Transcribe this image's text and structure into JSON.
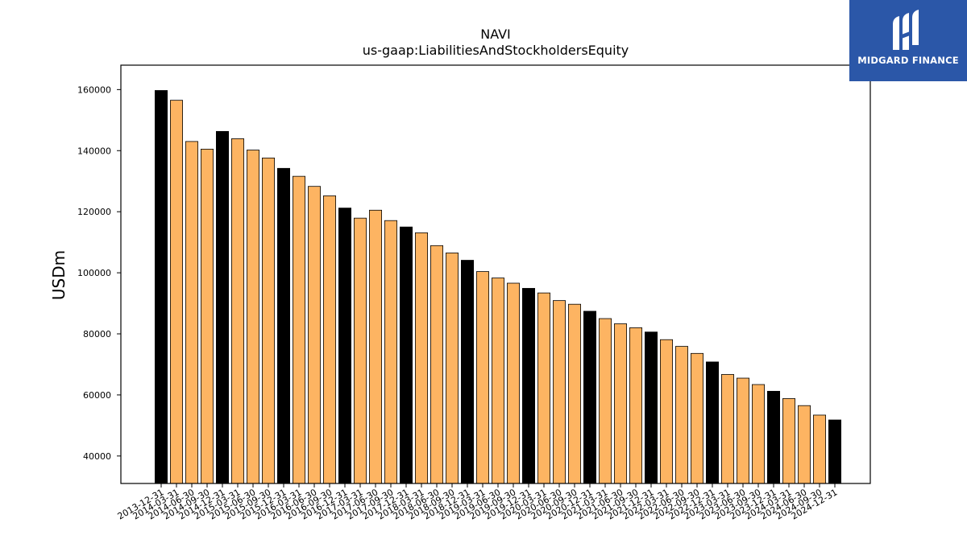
{
  "brand": {
    "name": "MIDGARD FINANCE",
    "icon": "midgard-logo-icon",
    "background_color": "#2b57a8"
  },
  "chart_data": {
    "type": "bar",
    "title": "NAVI",
    "subtitle": "us-gaap:LiabilitiesAndStockholdersEquity",
    "xlabel": "",
    "ylabel": "USDm",
    "ylim": [
      31000,
      168000
    ],
    "yticks": [
      40000,
      60000,
      80000,
      100000,
      120000,
      140000,
      160000
    ],
    "grid": false,
    "legend": "none",
    "colors": {
      "annual": "#000000",
      "quarterly": "#fdb462",
      "edge": "#000000"
    },
    "categories": [
      "2013-12-31",
      "2014-03-31",
      "2014-06-30",
      "2014-09-30",
      "2014-12-31",
      "2015-03-31",
      "2015-06-30",
      "2015-09-30",
      "2015-12-31",
      "2016-03-31",
      "2016-06-30",
      "2016-09-30",
      "2016-12-31",
      "2017-03-31",
      "2017-06-30",
      "2017-09-30",
      "2017-12-31",
      "2018-03-31",
      "2018-06-30",
      "2018-09-30",
      "2018-12-31",
      "2019-03-31",
      "2019-06-30",
      "2019-09-30",
      "2019-12-31",
      "2020-03-31",
      "2020-06-30",
      "2020-09-30",
      "2020-12-31",
      "2021-03-31",
      "2021-06-30",
      "2021-09-30",
      "2021-12-31",
      "2022-03-31",
      "2022-06-30",
      "2022-09-30",
      "2022-12-31",
      "2023-03-31",
      "2023-06-30",
      "2023-09-30",
      "2023-12-31",
      "2024-03-31",
      "2024-06-30",
      "2024-09-30",
      "2024-12-31"
    ],
    "values": [
      159700,
      156500,
      143000,
      140500,
      146300,
      143900,
      140200,
      137600,
      134200,
      131600,
      128300,
      125200,
      121200,
      117900,
      120500,
      117100,
      115000,
      113100,
      108900,
      106500,
      104100,
      100400,
      98300,
      96600,
      94900,
      93400,
      90900,
      89700,
      87400,
      85000,
      83300,
      82000,
      80600,
      78100,
      75900,
      73600,
      70800,
      66700,
      65500,
      63400,
      61200,
      58800,
      56500,
      53400,
      51800
    ],
    "annual": [
      true,
      false,
      false,
      false,
      true,
      false,
      false,
      false,
      true,
      false,
      false,
      false,
      true,
      false,
      false,
      false,
      true,
      false,
      false,
      false,
      true,
      false,
      false,
      false,
      true,
      false,
      false,
      false,
      true,
      false,
      false,
      false,
      true,
      false,
      false,
      false,
      true,
      false,
      false,
      false,
      true,
      false,
      false,
      false,
      true
    ]
  }
}
